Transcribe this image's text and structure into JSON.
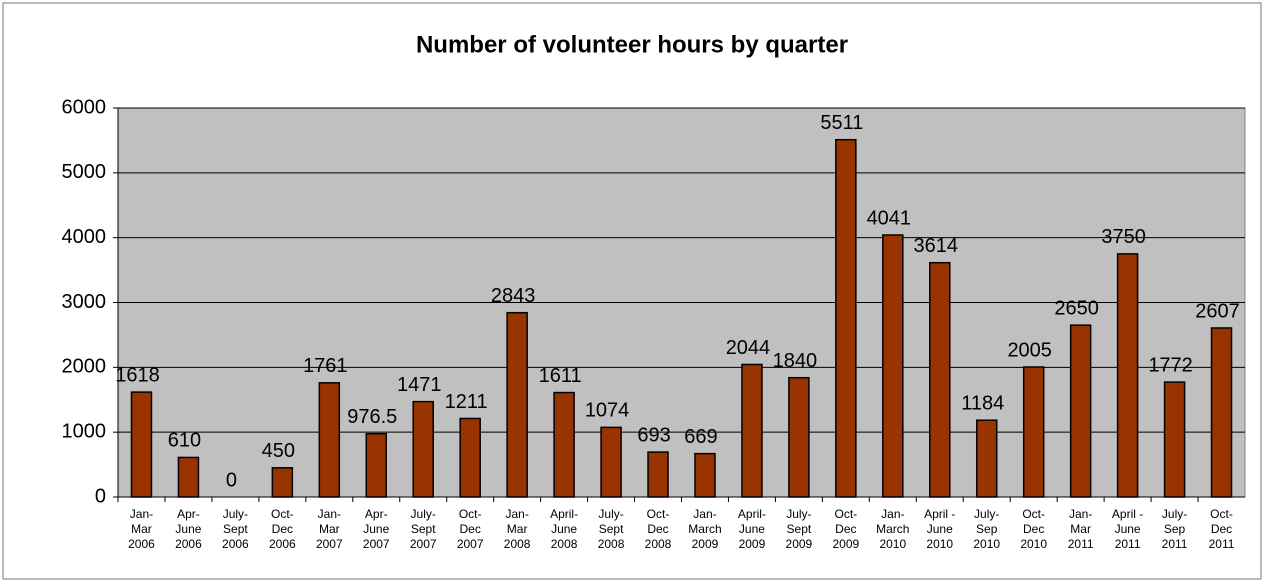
{
  "chart_data": {
    "type": "bar",
    "title": "Number of volunteer hours by quarter",
    "categories": [
      "Jan-\nMar\n2006",
      "Apr-\nJune\n2006",
      "July-\nSept\n2006",
      "Oct-\nDec\n2006",
      "Jan-\nMar\n2007",
      "Apr-\nJune\n2007",
      "July-\nSept\n2007",
      "Oct-\nDec\n2007",
      "Jan-\nMar\n2008",
      "April-\nJune\n2008",
      "July-\nSept\n2008",
      "Oct-\nDec\n2008",
      "Jan-\nMarch\n2009",
      "April-\nJune\n2009",
      "July-\nSept\n2009",
      "Oct-\nDec\n2009",
      "Jan-\nMarch\n2010",
      "April -\nJune\n2010",
      "July-\nSep\n2010",
      "Oct-\nDec\n2010",
      "Jan-\nMar\n2011",
      "April -\nJune\n2011",
      "July-\nSep\n2011",
      "Oct-\nDec\n2011"
    ],
    "values": [
      1618,
      610,
      0,
      450,
      1761,
      976.5,
      1471,
      1211,
      2843,
      1611,
      1074,
      693,
      669,
      2044,
      1840,
      5511,
      4041,
      3614,
      1184,
      2005,
      2650,
      3750,
      1772,
      2607
    ],
    "color": "#993300",
    "ylim": [
      0,
      6000
    ],
    "yticks": [
      0,
      1000,
      2000,
      3000,
      4000,
      5000,
      6000
    ],
    "grid": true
  }
}
